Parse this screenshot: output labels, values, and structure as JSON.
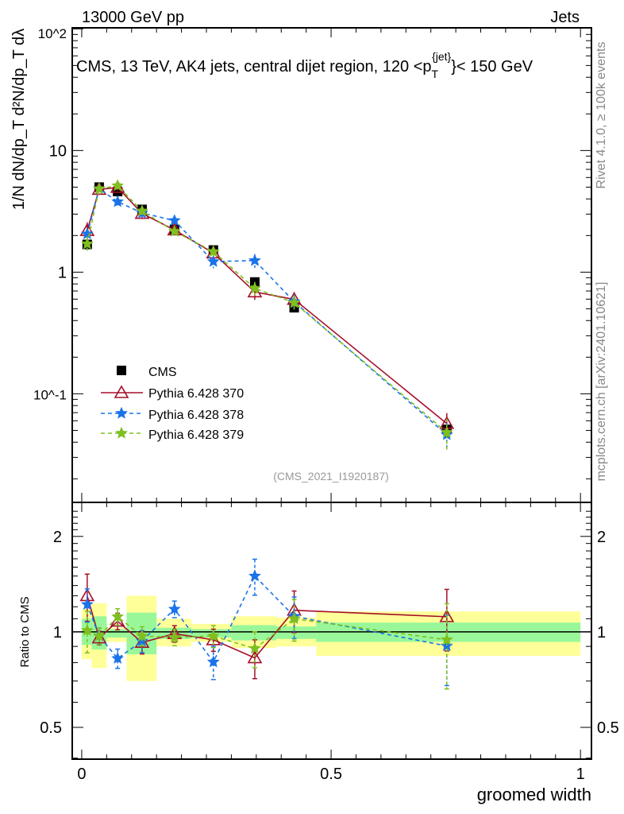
{
  "header": {
    "left": "13000 GeV pp",
    "right": "Jets"
  },
  "side": {
    "rivet": "Rivet 4.1.0, ≥ 100k events",
    "mcplots": "mcplots.cern.ch [arXiv:2401.10621]"
  },
  "chart_data": {
    "type": "line",
    "title": "CMS, 13 TeV, AK4 jets, central dijet region, 120 <p_T^{jet}< 150 GeV",
    "title_parts": {
      "main": "CMS, 13 TeV, AK4 jets, central dijet region, 120 <p",
      "sub": "T",
      "sup": "{jet}",
      "tail": "}< 150 GeV"
    },
    "analysis_id": "(CMS_2021_I1920187)",
    "xlabel": "groomed width",
    "ylabel": "1/N dN/dp_T d²N/dp_T dλ",
    "ratio_ylabel": "Ratio to CMS",
    "xlim": [
      -0.019,
      1.022
    ],
    "ylim": [
      0.0128,
      102
    ],
    "ylog": true,
    "ratio_ylim": [
      0.397,
      2.56
    ],
    "ratio_ylog": true,
    "x_ticks": [
      "0",
      "0.5",
      "1"
    ],
    "x_tick_values": [
      0,
      0.5,
      1
    ],
    "y_ticks": [
      "10^-1",
      "1",
      "10",
      "10^2"
    ],
    "y_tick_values": [
      0.1,
      1,
      10,
      100
    ],
    "ratio_ticks": [
      "0.5",
      "1",
      "2"
    ],
    "ratio_tick_values": [
      0.5,
      1,
      2
    ],
    "legend_position": "middle-left",
    "bin_edges": [
      0,
      0.02,
      0.05,
      0.09,
      0.15,
      0.22,
      0.3,
      0.39,
      0.47,
      1.0
    ],
    "x": [
      0.011,
      0.035,
      0.072,
      0.121,
      0.186,
      0.264,
      0.347,
      0.426,
      0.732
    ],
    "data": {
      "name": "CMS",
      "color": "#000000",
      "values": [
        1.69,
        5.0,
        4.6,
        3.28,
        2.25,
        1.52,
        0.83,
        0.51,
        0.051
      ],
      "stat_band": [
        [
          0.91,
          1.1
        ],
        [
          0.88,
          1.12
        ],
        [
          0.96,
          1.02
        ],
        [
          0.85,
          1.15
        ],
        [
          0.95,
          1.03
        ],
        [
          0.96,
          1.02
        ],
        [
          0.94,
          1.05
        ],
        [
          0.95,
          1.04
        ],
        [
          0.93,
          1.07
        ]
      ],
      "total_band": [
        [
          0.82,
          1.18
        ],
        [
          0.77,
          1.23
        ],
        [
          0.93,
          1.03
        ],
        [
          0.7,
          1.3
        ],
        [
          0.9,
          1.1
        ],
        [
          0.93,
          1.06
        ],
        [
          0.89,
          1.12
        ],
        [
          0.9,
          1.11
        ],
        [
          0.84,
          1.16
        ]
      ]
    },
    "series": [
      {
        "name": "Pythia 6.428 370",
        "color": "#a50f2a",
        "marker": "triangle-open",
        "dash": "solid",
        "ratio": [
          1.3,
          0.957,
          1.08,
          0.926,
          0.987,
          0.944,
          0.828,
          1.17,
          1.116
        ],
        "rel_err": [
          0.17,
          0.05,
          0.06,
          0.08,
          0.06,
          0.08,
          0.14,
          0.15,
          0.22
        ]
      },
      {
        "name": "Pythia 6.428 378",
        "color": "#1a73e8",
        "marker": "star",
        "dash": "dashed",
        "ratio": [
          1.22,
          0.97,
          0.825,
          0.935,
          1.18,
          0.804,
          1.5,
          1.12,
          0.903
        ],
        "rel_err": [
          0.12,
          0.06,
          0.07,
          0.08,
          0.06,
          0.12,
          0.13,
          0.15,
          0.25
        ]
      },
      {
        "name": "Pythia 6.428 379",
        "color": "#7fbf1f",
        "marker": "star",
        "dash": "dashed",
        "ratio": [
          1.01,
          0.97,
          1.116,
          0.97,
          0.962,
          0.97,
          0.886,
          1.1,
          0.944
        ],
        "rel_err": [
          0.15,
          0.06,
          0.06,
          0.07,
          0.06,
          0.08,
          0.13,
          0.15,
          0.3
        ]
      }
    ],
    "band_colors": {
      "stat": "#99f799",
      "total": "#ffff99"
    }
  }
}
